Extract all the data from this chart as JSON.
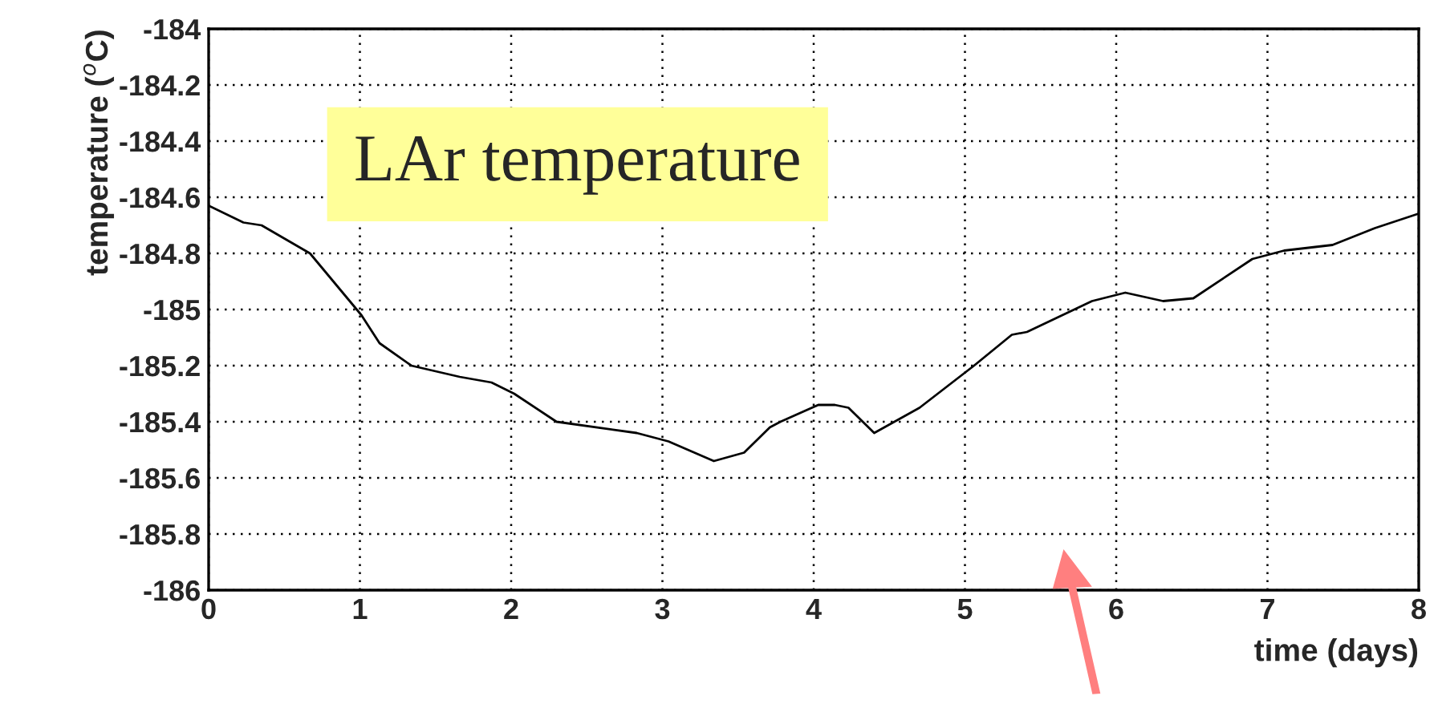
{
  "chart_data": {
    "type": "line",
    "title": "LAr temperature",
    "xlabel": "time (days)",
    "ylabel": "temperature ($^{o}$C)",
    "x": [
      0,
      0.23,
      0.35,
      0.67,
      1.01,
      1.13,
      1.34,
      1.66,
      1.87,
      2.02,
      2.3,
      2.83,
      3.04,
      3.34,
      3.54,
      3.71,
      3.78,
      4.03,
      4.14,
      4.23,
      4.4,
      4.7,
      5.06,
      5.31,
      5.41,
      5.84,
      6.06,
      6.31,
      6.51,
      6.9,
      7.11,
      7.43,
      7.71,
      7.99
    ],
    "series": [
      {
        "color": "#000000",
        "values": [
          -184.63,
          -184.69,
          -184.7,
          -184.8,
          -185.02,
          -185.12,
          -185.2,
          -185.24,
          -185.26,
          -185.3,
          -185.4,
          -185.44,
          -185.47,
          -185.54,
          -185.51,
          -185.42,
          -185.4,
          -185.34,
          -185.34,
          -185.35,
          -185.44,
          -185.35,
          -185.2,
          -185.09,
          -185.08,
          -184.97,
          -184.94,
          -184.97,
          -184.96,
          -184.82,
          -184.79,
          -184.77,
          -184.71,
          -184.66
        ]
      }
    ],
    "xlim": [
      0,
      8
    ],
    "xticks": [
      0,
      1,
      2,
      3,
      4,
      5,
      6,
      7,
      8
    ],
    "ylim": [
      -186,
      -184
    ],
    "yticks": [
      -186,
      -185.8,
      -185.6,
      -185.4,
      -185.2,
      -185,
      -184.8,
      -184.6,
      -184.4,
      -184.2,
      -184
    ],
    "grid": true,
    "legend": false,
    "marker": "none",
    "line_style": "solid"
  }
}
